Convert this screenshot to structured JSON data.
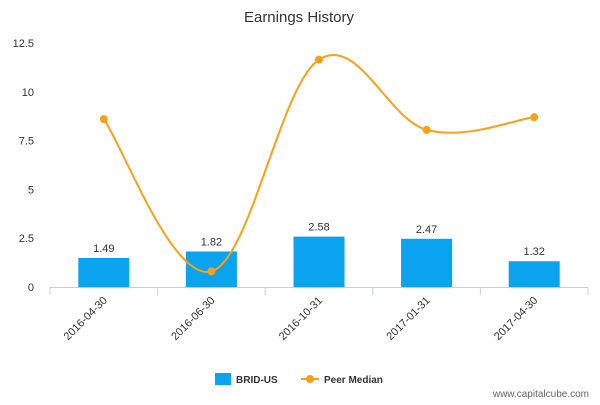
{
  "chart_data": {
    "type": "bar",
    "title": "Earnings History",
    "categories": [
      "2016-04-30",
      "2016-06-30",
      "2016-10-31",
      "2017-01-31",
      "2017-04-30"
    ],
    "series": [
      {
        "name": "BRID-US",
        "type": "bar",
        "values": [
          1.49,
          1.82,
          2.58,
          2.47,
          1.32
        ],
        "data_labels": [
          "1.49",
          "1.82",
          "2.58",
          "2.47",
          "1.32"
        ]
      },
      {
        "name": "Peer Median",
        "type": "line",
        "values": [
          8.6,
          0.8,
          11.65,
          8.05,
          8.7
        ]
      }
    ],
    "yticks": [
      "0",
      "2.5",
      "5",
      "7.5",
      "10",
      "12.5"
    ],
    "ylim": [
      0,
      12.5
    ],
    "grid": false,
    "legend_position": "bottom-center",
    "colors": {
      "bar": "#0aa3ef",
      "line": "#f7a117",
      "text": "#333333",
      "axis": "#c0d0e0",
      "muted": "#666666"
    }
  },
  "footer": {
    "watermark": "www.capitalcube.com"
  }
}
